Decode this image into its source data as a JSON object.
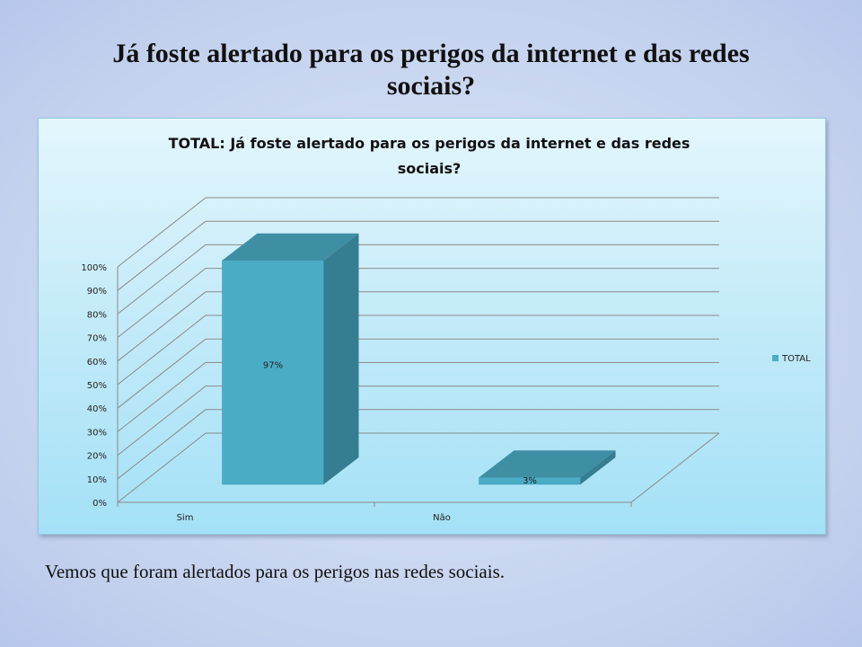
{
  "slide": {
    "title": "Já foste alertado para os perigos da internet e das redes sociais?",
    "caption": "Vemos que foram alertados para os perigos nas redes sociais."
  },
  "colors": {
    "bar_front": "#4bacc6",
    "bar_side": "#357d90",
    "bar_top": "#3f8fa4",
    "grid": "#8a8a8a"
  },
  "chart_data": {
    "type": "bar",
    "title_lines": [
      "TOTAL: Já foste alertado para os perigos da internet e das redes",
      "sociais?"
    ],
    "categories": [
      "Sim",
      "Não"
    ],
    "series": [
      {
        "name": "TOTAL",
        "values": [
          97,
          3
        ],
        "labels": [
          "97%",
          "3%"
        ]
      }
    ],
    "ylim": [
      0,
      100
    ],
    "y_ticks": [
      "0%",
      "10%",
      "20%",
      "30%",
      "40%",
      "50%",
      "60%",
      "70%",
      "80%",
      "90%",
      "100%"
    ],
    "legend_position": "right",
    "grid": true,
    "three_d": true
  }
}
